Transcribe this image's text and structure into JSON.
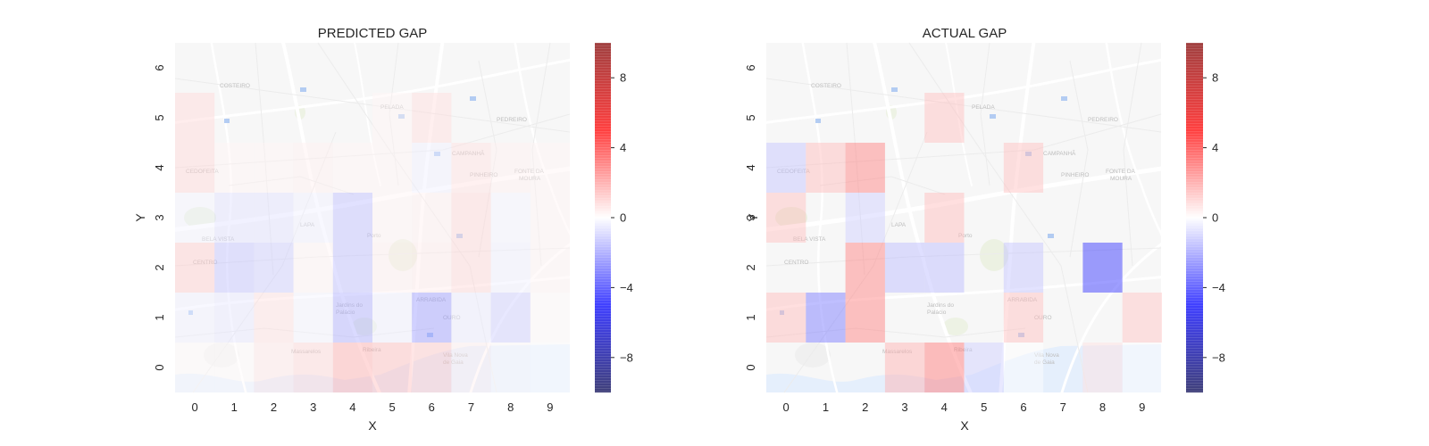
{
  "chart_data": [
    {
      "type": "heatmap",
      "title": "PREDICTED GAP",
      "xlabel": "X",
      "ylabel": "Y",
      "x_ticks": [
        "0",
        "1",
        "2",
        "3",
        "4",
        "5",
        "6",
        "7",
        "8",
        "9"
      ],
      "y_ticks": [
        "0",
        "1",
        "2",
        "3",
        "4",
        "5",
        "6"
      ],
      "xlim": [
        -0.5,
        9.5
      ],
      "ylim": [
        -0.5,
        6.5
      ],
      "colorbar": {
        "range": [
          -10,
          10
        ],
        "ticks": [
          "8",
          "4",
          "0",
          "−4",
          "−8"
        ],
        "tick_values": [
          8,
          4,
          0,
          -4,
          -8
        ],
        "colormap": "seismic"
      },
      "background": "street map",
      "cells": [
        {
          "x": 0,
          "y": 5,
          "v": 0.8
        },
        {
          "x": 6,
          "y": 5,
          "v": 0.7
        },
        {
          "x": 5,
          "y": 5,
          "v": 0.2
        },
        {
          "x": 0,
          "y": 4,
          "v": 0.8
        },
        {
          "x": 1,
          "y": 4,
          "v": 0.2
        },
        {
          "x": 2,
          "y": 4,
          "v": 0.2
        },
        {
          "x": 3,
          "y": 4,
          "v": 0.3
        },
        {
          "x": 4,
          "y": 4,
          "v": 0.2
        },
        {
          "x": 5,
          "y": 4,
          "v": 0.2
        },
        {
          "x": 6,
          "y": 4,
          "v": -0.3
        },
        {
          "x": 7,
          "y": 4,
          "v": 0.6
        },
        {
          "x": 8,
          "y": 4,
          "v": 0.3
        },
        {
          "x": 9,
          "y": 4,
          "v": 0.2
        },
        {
          "x": 0,
          "y": 3,
          "v": -0.2
        },
        {
          "x": 1,
          "y": 3,
          "v": -0.6
        },
        {
          "x": 2,
          "y": 3,
          "v": -0.6
        },
        {
          "x": 3,
          "y": 3,
          "v": -0.3
        },
        {
          "x": 4,
          "y": 3,
          "v": -1.3
        },
        {
          "x": 5,
          "y": 3,
          "v": 0.2
        },
        {
          "x": 6,
          "y": 3,
          "v": 0.3
        },
        {
          "x": 7,
          "y": 3,
          "v": 0.8
        },
        {
          "x": 8,
          "y": 3,
          "v": -0.2
        },
        {
          "x": 9,
          "y": 3,
          "v": 0.2
        },
        {
          "x": 0,
          "y": 2,
          "v": 1.0
        },
        {
          "x": 1,
          "y": 2,
          "v": -1.2
        },
        {
          "x": 2,
          "y": 2,
          "v": -1.0
        },
        {
          "x": 3,
          "y": 2,
          "v": 0.2
        },
        {
          "x": 4,
          "y": 2,
          "v": -1.3
        },
        {
          "x": 5,
          "y": 2,
          "v": 0.3
        },
        {
          "x": 6,
          "y": 2,
          "v": 0.4
        },
        {
          "x": 7,
          "y": 2,
          "v": 0.8
        },
        {
          "x": 8,
          "y": 2,
          "v": -0.3
        },
        {
          "x": 9,
          "y": 2,
          "v": 0.2
        },
        {
          "x": 0,
          "y": 1,
          "v": -0.3
        },
        {
          "x": 1,
          "y": 1,
          "v": -0.5
        },
        {
          "x": 2,
          "y": 1,
          "v": 0.6
        },
        {
          "x": 3,
          "y": 1,
          "v": -0.2
        },
        {
          "x": 4,
          "y": 1,
          "v": -1.6
        },
        {
          "x": 5,
          "y": 1,
          "v": -0.3
        },
        {
          "x": 6,
          "y": 1,
          "v": -2.0
        },
        {
          "x": 7,
          "y": 1,
          "v": -0.4
        },
        {
          "x": 8,
          "y": 1,
          "v": -1.0
        },
        {
          "x": 9,
          "y": 1,
          "v": 0.1
        },
        {
          "x": 0,
          "y": 0,
          "v": 0.1
        },
        {
          "x": 1,
          "y": 0,
          "v": 0.1
        },
        {
          "x": 2,
          "y": 0,
          "v": 0.5
        },
        {
          "x": 3,
          "y": 0,
          "v": 0.8
        },
        {
          "x": 4,
          "y": 0,
          "v": 1.6
        },
        {
          "x": 5,
          "y": 0,
          "v": 1.3
        },
        {
          "x": 6,
          "y": 0,
          "v": 1.1
        },
        {
          "x": 7,
          "y": 0,
          "v": 0.3
        },
        {
          "x": 8,
          "y": 0,
          "v": 0.1
        },
        {
          "x": 9,
          "y": 0,
          "v": 0.0
        }
      ]
    },
    {
      "type": "heatmap",
      "title": "ACTUAL GAP",
      "xlabel": "X",
      "ylabel": "Y",
      "x_ticks": [
        "0",
        "1",
        "2",
        "3",
        "4",
        "5",
        "6",
        "7",
        "8",
        "9"
      ],
      "y_ticks": [
        "0",
        "1",
        "2",
        "3",
        "4",
        "5",
        "6"
      ],
      "xlim": [
        -0.5,
        9.5
      ],
      "ylim": [
        -0.5,
        6.5
      ],
      "colorbar": {
        "range": [
          -10,
          10
        ],
        "ticks": [
          "8",
          "4",
          "0",
          "−4",
          "−8"
        ],
        "tick_values": [
          8,
          4,
          0,
          -4,
          -8
        ],
        "colormap": "seismic"
      },
      "background": "street map",
      "cells": [
        {
          "x": 4,
          "y": 5,
          "v": 1.3
        },
        {
          "x": 0,
          "y": 4,
          "v": -1.2
        },
        {
          "x": 1,
          "y": 4,
          "v": 1.4
        },
        {
          "x": 2,
          "y": 4,
          "v": 2.6
        },
        {
          "x": 6,
          "y": 4,
          "v": 1.3
        },
        {
          "x": 0,
          "y": 3,
          "v": 1.3
        },
        {
          "x": 2,
          "y": 3,
          "v": -1.0
        },
        {
          "x": 4,
          "y": 3,
          "v": 1.4
        },
        {
          "x": 2,
          "y": 2,
          "v": 2.6
        },
        {
          "x": 3,
          "y": 2,
          "v": -1.4
        },
        {
          "x": 4,
          "y": 2,
          "v": -1.4
        },
        {
          "x": 6,
          "y": 2,
          "v": -1.2
        },
        {
          "x": 8,
          "y": 2,
          "v": -4.2
        },
        {
          "x": 0,
          "y": 1,
          "v": 1.4
        },
        {
          "x": 1,
          "y": 1,
          "v": -2.8
        },
        {
          "x": 2,
          "y": 1,
          "v": 2.6
        },
        {
          "x": 6,
          "y": 1,
          "v": 1.3
        },
        {
          "x": 9,
          "y": 1,
          "v": 1.2
        },
        {
          "x": 3,
          "y": 0,
          "v": 1.6
        },
        {
          "x": 4,
          "y": 0,
          "v": 2.8
        },
        {
          "x": 5,
          "y": 0,
          "v": -1.0
        },
        {
          "x": 6,
          "y": 0,
          "v": 0.0
        },
        {
          "x": 8,
          "y": 0,
          "v": 0.6
        },
        {
          "x": 9,
          "y": 0,
          "v": 0.0
        }
      ]
    }
  ]
}
